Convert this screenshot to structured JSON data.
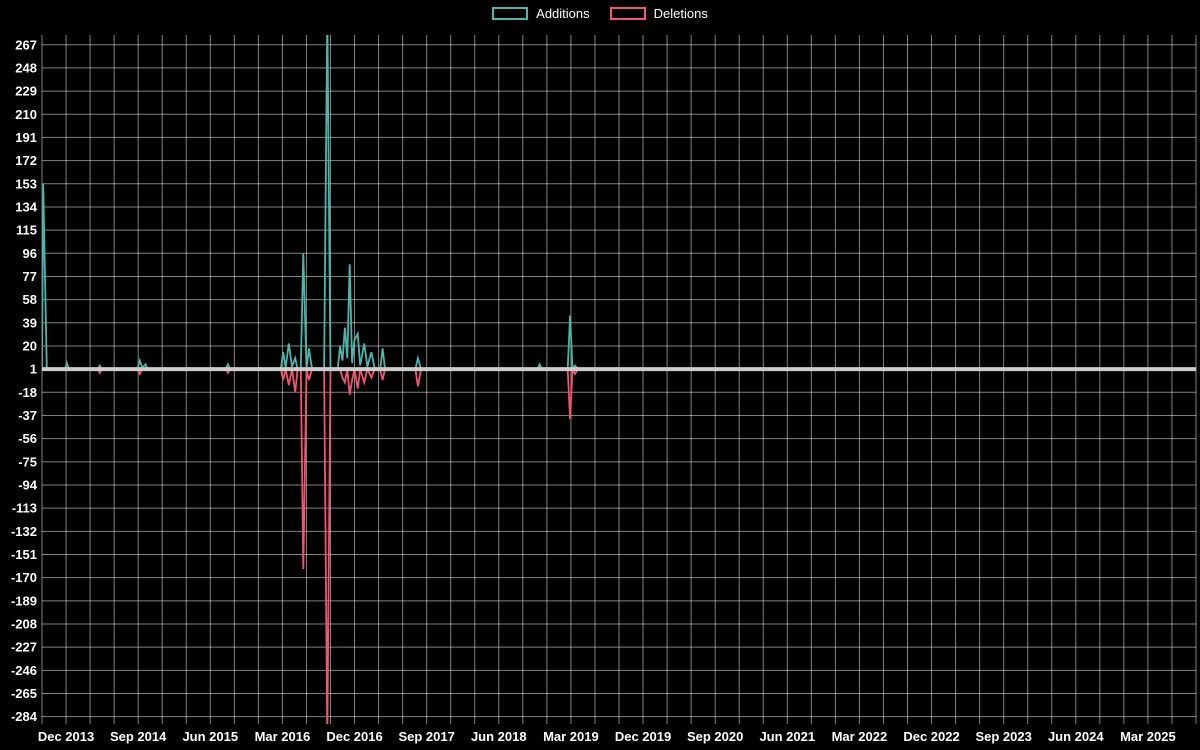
{
  "legend": {
    "items": [
      {
        "label": "Additions",
        "color": "#4db6ac"
      },
      {
        "label": "Deletions",
        "color": "#f25472"
      }
    ]
  },
  "chart_data": {
    "type": "line",
    "title": "",
    "xlabel": "",
    "ylabel": "",
    "background": "#000000",
    "grid_color": "rgba(255,255,255,0.5)",
    "text_color": "#ffffff",
    "baseline_value": 1,
    "baseline_color": "#cccccc",
    "x_unit": "months (0 = Sep 2013)",
    "xlim": [
      0,
      144
    ],
    "x_gridline_step_months": 3,
    "x_tick_months": [
      3,
      12,
      21,
      30,
      39,
      48,
      57,
      66,
      75,
      84,
      93,
      102,
      111,
      120,
      129,
      138
    ],
    "x_tick_labels": [
      "Dec 2013",
      "Sep 2014",
      "Jun 2015",
      "Mar 2016",
      "Dec 2016",
      "Sep 2017",
      "Jun 2018",
      "Mar 2019",
      "Dec 2019",
      "Sep 2020",
      "Jun 2021",
      "Mar 2022",
      "Dec 2022",
      "Sep 2023",
      "Jun 2024",
      "Mar 2025"
    ],
    "ylim": [
      -290,
      275
    ],
    "yticks": [
      267,
      248,
      229,
      210,
      191,
      172,
      153,
      134,
      115,
      96,
      77,
      58,
      39,
      20,
      1,
      -18,
      -37,
      -56,
      -75,
      -94,
      -113,
      -132,
      -151,
      -170,
      -189,
      -208,
      -227,
      -246,
      -265,
      -284
    ],
    "series": [
      {
        "name": "Deletions",
        "color": "#f25472",
        "points": [
          [
            0,
            1
          ],
          [
            7.0,
            1
          ],
          [
            7.2,
            -2
          ],
          [
            7.5,
            1
          ],
          [
            11.9,
            1
          ],
          [
            12.2,
            -3
          ],
          [
            12.5,
            1
          ],
          [
            23.0,
            1
          ],
          [
            23.2,
            -2
          ],
          [
            23.5,
            1
          ],
          [
            29.8,
            1
          ],
          [
            30.1,
            -8
          ],
          [
            30.4,
            1
          ],
          [
            30.8,
            -12
          ],
          [
            31.2,
            1
          ],
          [
            31.6,
            -18
          ],
          [
            31.9,
            1
          ],
          [
            32.3,
            1
          ],
          [
            32.6,
            -163
          ],
          [
            33.0,
            1
          ],
          [
            33.3,
            -8
          ],
          [
            33.7,
            1
          ],
          [
            35.2,
            1
          ],
          [
            35.6,
            -300
          ],
          [
            36.0,
            1
          ],
          [
            37.2,
            1
          ],
          [
            37.5,
            -6
          ],
          [
            37.8,
            -10
          ],
          [
            38.1,
            1
          ],
          [
            38.4,
            -20
          ],
          [
            38.7,
            -8
          ],
          [
            39.0,
            1
          ],
          [
            39.4,
            -15
          ],
          [
            39.7,
            1
          ],
          [
            40.2,
            -10
          ],
          [
            40.6,
            1
          ],
          [
            41.1,
            -6
          ],
          [
            41.5,
            1
          ],
          [
            42.2,
            1
          ],
          [
            42.5,
            -8
          ],
          [
            42.8,
            1
          ],
          [
            46.6,
            1
          ],
          [
            46.9,
            -13
          ],
          [
            47.3,
            1
          ],
          [
            62.1,
            1
          ],
          [
            65.6,
            1
          ],
          [
            65.9,
            -40
          ],
          [
            66.2,
            1
          ],
          [
            66.5,
            -3
          ],
          [
            66.9,
            1
          ],
          [
            144,
            1
          ]
        ]
      },
      {
        "name": "Additions",
        "color": "#4db6ac",
        "points": [
          [
            0,
            1
          ],
          [
            0.15,
            153
          ],
          [
            0.6,
            1
          ],
          [
            2.9,
            1
          ],
          [
            3.1,
            6
          ],
          [
            3.4,
            1
          ],
          [
            7.0,
            1
          ],
          [
            7.2,
            4
          ],
          [
            7.5,
            1
          ],
          [
            11.9,
            1
          ],
          [
            12.2,
            8
          ],
          [
            12.5,
            2
          ],
          [
            12.9,
            5
          ],
          [
            13.2,
            1
          ],
          [
            22.9,
            1
          ],
          [
            23.2,
            5
          ],
          [
            23.5,
            1
          ],
          [
            29.8,
            1
          ],
          [
            30.1,
            15
          ],
          [
            30.4,
            2
          ],
          [
            30.8,
            22
          ],
          [
            31.2,
            3
          ],
          [
            31.6,
            10
          ],
          [
            31.9,
            1
          ],
          [
            32.3,
            2
          ],
          [
            32.6,
            96
          ],
          [
            33.0,
            1
          ],
          [
            33.3,
            18
          ],
          [
            33.7,
            1
          ],
          [
            35.2,
            1
          ],
          [
            35.6,
            292
          ],
          [
            36.0,
            1
          ],
          [
            36.9,
            1
          ],
          [
            37.2,
            20
          ],
          [
            37.5,
            8
          ],
          [
            37.8,
            35
          ],
          [
            38.1,
            10
          ],
          [
            38.4,
            87
          ],
          [
            38.7,
            6
          ],
          [
            39.0,
            25
          ],
          [
            39.4,
            30
          ],
          [
            39.7,
            4
          ],
          [
            40.2,
            22
          ],
          [
            40.6,
            3
          ],
          [
            41.1,
            15
          ],
          [
            41.5,
            2
          ],
          [
            42.2,
            1
          ],
          [
            42.5,
            18
          ],
          [
            42.8,
            1
          ],
          [
            46.6,
            1
          ],
          [
            46.9,
            10
          ],
          [
            47.3,
            1
          ],
          [
            61.8,
            1
          ],
          [
            62.1,
            5
          ],
          [
            62.4,
            1
          ],
          [
            65.6,
            1
          ],
          [
            65.9,
            45
          ],
          [
            66.2,
            1
          ],
          [
            66.5,
            4
          ],
          [
            66.9,
            1
          ],
          [
            144,
            1
          ]
        ]
      }
    ]
  }
}
